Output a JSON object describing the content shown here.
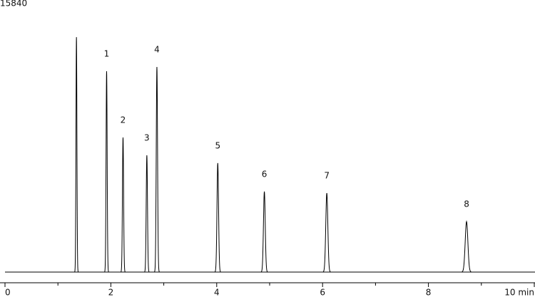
{
  "chart_data": {
    "type": "chromatogram",
    "xlim": [
      0,
      10
    ],
    "xticks": [
      0,
      2,
      4,
      6,
      8,
      {
        "value": 10,
        "label": "10 min"
      }
    ],
    "xminor_ticks": [
      1,
      3,
      5,
      7,
      9
    ],
    "ylim": [
      0,
      15840
    ],
    "yticks": [
      15840
    ],
    "color": "#000000",
    "peaks": [
      {
        "label": null,
        "time": 1.35,
        "height": 13860
      },
      {
        "label": "1",
        "time": 1.92,
        "height": 11850
      },
      {
        "label": "2",
        "time": 2.23,
        "height": 7940
      },
      {
        "label": "3",
        "time": 2.68,
        "height": 6890
      },
      {
        "label": "4",
        "time": 2.87,
        "height": 12100
      },
      {
        "label": "5",
        "time": 4.02,
        "height": 6430
      },
      {
        "label": "6",
        "time": 4.9,
        "height": 4750
      },
      {
        "label": "7",
        "time": 6.08,
        "height": 4660
      },
      {
        "label": "8",
        "time": 8.72,
        "height": 2980
      }
    ]
  }
}
